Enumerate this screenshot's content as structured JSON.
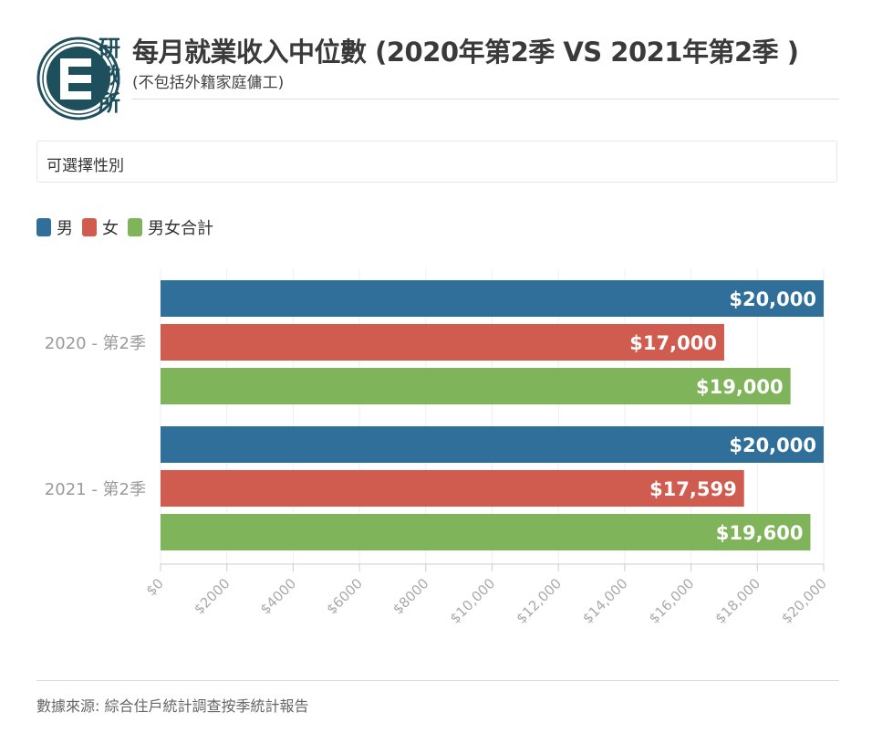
{
  "header": {
    "logo_chars": [
      "研",
      "數",
      "所"
    ],
    "title": "每月就業收入中位數 (2020年第2季 VS 2021年第2季 )",
    "subtitle": "(不包括外籍家庭傭工)"
  },
  "filter": {
    "label": "可選擇性別"
  },
  "colors": {
    "male": "#2f6f99",
    "female": "#cf5c4f",
    "total": "#7fb45a",
    "logo": "#1e4f5c"
  },
  "chart_data": {
    "type": "bar",
    "orientation": "horizontal",
    "categories": [
      "2020 - 第2季",
      "2021 - 第2季"
    ],
    "series": [
      {
        "name": "男",
        "values": [
          20000,
          20000
        ],
        "labels": [
          "$20,000",
          "$20,000"
        ]
      },
      {
        "name": "女",
        "values": [
          17000,
          17599
        ],
        "labels": [
          "$17,000",
          "$17,599"
        ]
      },
      {
        "name": "男女合計",
        "values": [
          19000,
          19600
        ],
        "labels": [
          "$19,000",
          "$19,600"
        ]
      }
    ],
    "xlim": [
      0,
      20000
    ],
    "x_ticks": [
      "$0",
      "$2000",
      "$4000",
      "$6000",
      "$8000",
      "$10,000",
      "$12,000",
      "$14,000",
      "$16,000",
      "$18,000",
      "$20,000"
    ],
    "legend_position": "top-left",
    "grid": true
  },
  "footer": {
    "source": "數據來源: 綜合住戶統計調查按季統計報告"
  }
}
